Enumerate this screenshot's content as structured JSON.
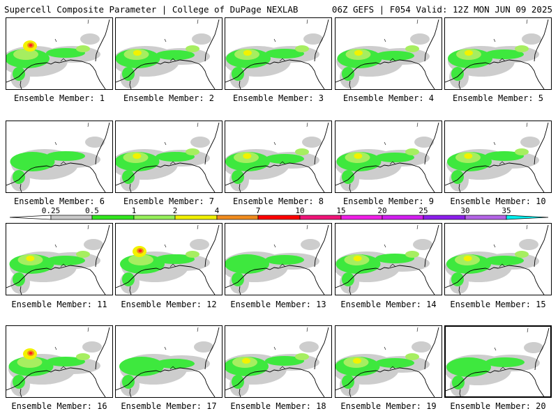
{
  "header": {
    "title_left": "Supercell Composite Parameter | College of DuPage NEXLAB",
    "title_right": "06Z GEFS | F054 Valid: 12Z MON JUN 09 2025"
  },
  "colorbar": {
    "labels": [
      "0.25",
      "0.5",
      "1",
      "2",
      "4",
      "7",
      "10",
      "15",
      "20",
      "25",
      "30",
      "35"
    ],
    "colors": [
      "#ffffff",
      "#c8c8c8",
      "#32e61e",
      "#96f05a",
      "#f0f000",
      "#f08c1e",
      "#ff0000",
      "#f01478",
      "#f01ee6",
      "#d21ef0",
      "#8c1eeb",
      "#b464e6",
      "#00f0f0"
    ]
  },
  "shade_colors": {
    "gray": "#cdcdcd",
    "green": "#3ee83e",
    "lightgreen": "#a6ee60",
    "yellow": "#f2f200",
    "orange": "#f08c1e",
    "red": "#ff2020"
  },
  "members": [
    {
      "label": "Ensemble Member: 1",
      "intensity": "high"
    },
    {
      "label": "Ensemble Member: 2",
      "intensity": "medium"
    },
    {
      "label": "Ensemble Member: 3",
      "intensity": "medium"
    },
    {
      "label": "Ensemble Member: 4",
      "intensity": "medium"
    },
    {
      "label": "Ensemble Member: 5",
      "intensity": "medium"
    },
    {
      "label": "Ensemble Member: 6",
      "intensity": "low"
    },
    {
      "label": "Ensemble Member: 7",
      "intensity": "medium"
    },
    {
      "label": "Ensemble Member: 8",
      "intensity": "medium"
    },
    {
      "label": "Ensemble Member: 9",
      "intensity": "medium"
    },
    {
      "label": "Ensemble Member: 10",
      "intensity": "medium"
    },
    {
      "label": "Ensemble Member: 11",
      "intensity": "medium"
    },
    {
      "label": "Ensemble Member: 12",
      "intensity": "high"
    },
    {
      "label": "Ensemble Member: 13",
      "intensity": "low"
    },
    {
      "label": "Ensemble Member: 14",
      "intensity": "medium"
    },
    {
      "label": "Ensemble Member: 15",
      "intensity": "medium"
    },
    {
      "label": "Ensemble Member: 16",
      "intensity": "high"
    },
    {
      "label": "Ensemble Member: 17",
      "intensity": "low"
    },
    {
      "label": "Ensemble Member: 18",
      "intensity": "medium"
    },
    {
      "label": "Ensemble Member: 19",
      "intensity": "medium"
    },
    {
      "label": "Ensemble Member: 20",
      "intensity": "low",
      "selected": true
    }
  ]
}
